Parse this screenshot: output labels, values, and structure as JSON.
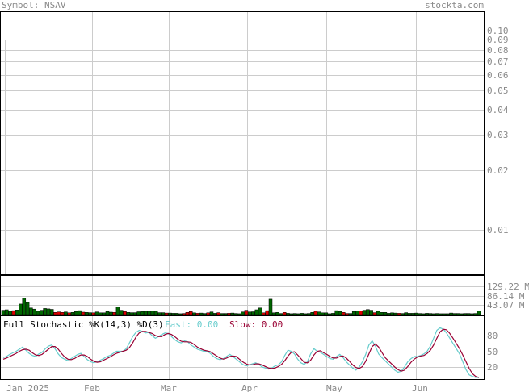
{
  "header": {
    "symbol_label": "Symbol: NSAV",
    "site_label": "stockta.com"
  },
  "colors": {
    "grid": "#cccccc",
    "frame": "#000000",
    "text": "#888888",
    "vol_up": "#006600",
    "vol_down": "#dd0000",
    "fast_line": "#66cccc",
    "slow_line": "#990033"
  },
  "chart_data": [
    {
      "type": "line",
      "panel": "price",
      "scale": "log",
      "ylim": [
        0.006,
        0.125
      ],
      "yticks": [
        "0.10",
        "0.09",
        "0.08",
        "0.07",
        "0.06",
        "0.05",
        "0.04",
        "0.03",
        "0.02",
        "0.01"
      ],
      "series": []
    },
    {
      "type": "bar",
      "panel": "volume",
      "ylim": [
        0,
        180
      ],
      "yticks": [
        "129.22 M",
        "86.14 M",
        "43.07 M"
      ],
      "values": [
        20,
        22,
        15,
        18,
        21,
        48,
        75,
        55,
        30,
        25,
        15,
        20,
        28,
        26,
        24,
        10,
        12,
        10,
        12,
        8,
        10,
        14,
        18,
        11,
        10,
        9,
        8,
        12,
        8,
        8,
        14,
        11,
        10,
        35,
        20,
        14,
        10,
        9,
        9,
        13,
        14,
        15,
        15,
        16,
        15,
        9,
        9,
        7,
        7,
        6,
        6,
        4,
        5,
        10,
        14,
        8,
        6,
        7,
        5,
        8,
        12,
        6,
        9,
        5,
        5,
        6,
        7,
        5,
        4,
        12,
        20,
        12,
        13,
        22,
        30,
        8,
        18,
        70,
        8,
        10,
        5,
        10,
        6,
        4,
        5,
        4,
        6,
        4,
        5,
        10,
        15,
        12,
        8,
        8,
        4,
        6,
        18,
        14,
        10,
        5,
        5,
        14,
        16,
        17,
        20,
        23,
        20,
        9,
        15,
        10,
        10,
        6,
        8,
        7,
        6,
        5,
        9,
        6,
        6,
        7,
        5,
        4,
        6,
        5,
        4,
        5,
        4,
        4,
        4,
        7,
        5,
        5,
        4,
        5,
        5,
        4,
        5,
        17
      ],
      "up": [
        1,
        1,
        1,
        0,
        1,
        1,
        1,
        1,
        1,
        1,
        1,
        1,
        1,
        1,
        1,
        0,
        0,
        0,
        1,
        0,
        1,
        1,
        1,
        0,
        1,
        1,
        0,
        1,
        1,
        1,
        1,
        1,
        0,
        1,
        1,
        0,
        1,
        1,
        1,
        1,
        1,
        1,
        1,
        1,
        1,
        1,
        1,
        0,
        1,
        1,
        1,
        1,
        0,
        0,
        0,
        1,
        0,
        1,
        1,
        0,
        1,
        1,
        0,
        1,
        1,
        0,
        1,
        1,
        1,
        1,
        0,
        1,
        1,
        1,
        1,
        0,
        0,
        1,
        1,
        1,
        1,
        0,
        1,
        1,
        1,
        1,
        1,
        1,
        1,
        1,
        0,
        1,
        1,
        1,
        1,
        1,
        1,
        1,
        0,
        0,
        1,
        1,
        1,
        0,
        1,
        1,
        1,
        0,
        1,
        1,
        1,
        1,
        1,
        1,
        0,
        1,
        1,
        1,
        1,
        1,
        1,
        1,
        1,
        1,
        1,
        1,
        1,
        1,
        1,
        1,
        1,
        1,
        1,
        1,
        1,
        1,
        1,
        1
      ]
    },
    {
      "type": "line",
      "panel": "stochastic",
      "ylim": [
        0,
        100
      ],
      "yticks": [
        "80",
        "50",
        "20"
      ],
      "title": "Full Stochastic %K(14,3) %D(3)",
      "fast_label": "Fast: 0.00",
      "slow_label": "Slow: 0.00",
      "series": [
        {
          "name": "Fast",
          "values": [
            38,
            40,
            44,
            47,
            50,
            54,
            58,
            52,
            46,
            42,
            40,
            45,
            48,
            55,
            60,
            62,
            55,
            45,
            38,
            35,
            32,
            36,
            40,
            44,
            46,
            40,
            34,
            30,
            28,
            30,
            33,
            36,
            40,
            42,
            46,
            50,
            50,
            50,
            55,
            66,
            78,
            86,
            90,
            88,
            85,
            86,
            80,
            75,
            78,
            82,
            85,
            84,
            78,
            72,
            68,
            66,
            70,
            68,
            62,
            58,
            54,
            52,
            50,
            50,
            46,
            40,
            36,
            34,
            36,
            40,
            44,
            40,
            35,
            30,
            25,
            22,
            24,
            26,
            28,
            25,
            20,
            18,
            16,
            18,
            22,
            24,
            30,
            42,
            52,
            50,
            45,
            35,
            28,
            25,
            30,
            45,
            55,
            50,
            48,
            44,
            40,
            36,
            35,
            40,
            44,
            38,
            30,
            24,
            18,
            14,
            20,
            30,
            44,
            62,
            70,
            60,
            45,
            38,
            32,
            26,
            20,
            14,
            10,
            12,
            20,
            30,
            36,
            40,
            40,
            42,
            45,
            50,
            60,
            75,
            90,
            95,
            92,
            85,
            75,
            65,
            55,
            45,
            30,
            15,
            5,
            2,
            0,
            0
          ]
        },
        {
          "name": "Slow",
          "values": [
            35,
            37,
            40,
            43,
            46,
            50,
            53,
            54,
            52,
            47,
            43,
            42,
            44,
            49,
            54,
            59,
            59,
            54,
            46,
            39,
            35,
            34,
            36,
            40,
            43,
            43,
            40,
            35,
            31,
            29,
            30,
            33,
            36,
            39,
            43,
            46,
            48,
            50,
            52,
            57,
            66,
            77,
            85,
            88,
            88,
            86,
            84,
            80,
            78,
            78,
            82,
            84,
            82,
            78,
            73,
            69,
            68,
            68,
            67,
            63,
            58,
            55,
            52,
            51,
            49,
            45,
            41,
            37,
            35,
            37,
            40,
            41,
            40,
            35,
            30,
            26,
            24,
            24,
            26,
            26,
            24,
            21,
            18,
            17,
            18,
            21,
            25,
            32,
            41,
            48,
            49,
            43,
            36,
            29,
            28,
            33,
            43,
            50,
            51,
            47,
            44,
            40,
            37,
            37,
            40,
            41,
            37,
            31,
            24,
            19,
            17,
            21,
            31,
            45,
            59,
            64,
            58,
            48,
            38,
            32,
            26,
            20,
            15,
            12,
            14,
            21,
            29,
            35,
            39,
            41,
            42,
            46,
            52,
            62,
            75,
            87,
            92,
            91,
            84,
            75,
            65,
            55,
            43,
            30,
            17,
            7,
            2,
            0
          ]
        }
      ]
    }
  ],
  "x_axis": {
    "labels": [
      "Jan 2025",
      "Feb",
      "Mar",
      "Apr",
      "May",
      "Jun"
    ]
  }
}
